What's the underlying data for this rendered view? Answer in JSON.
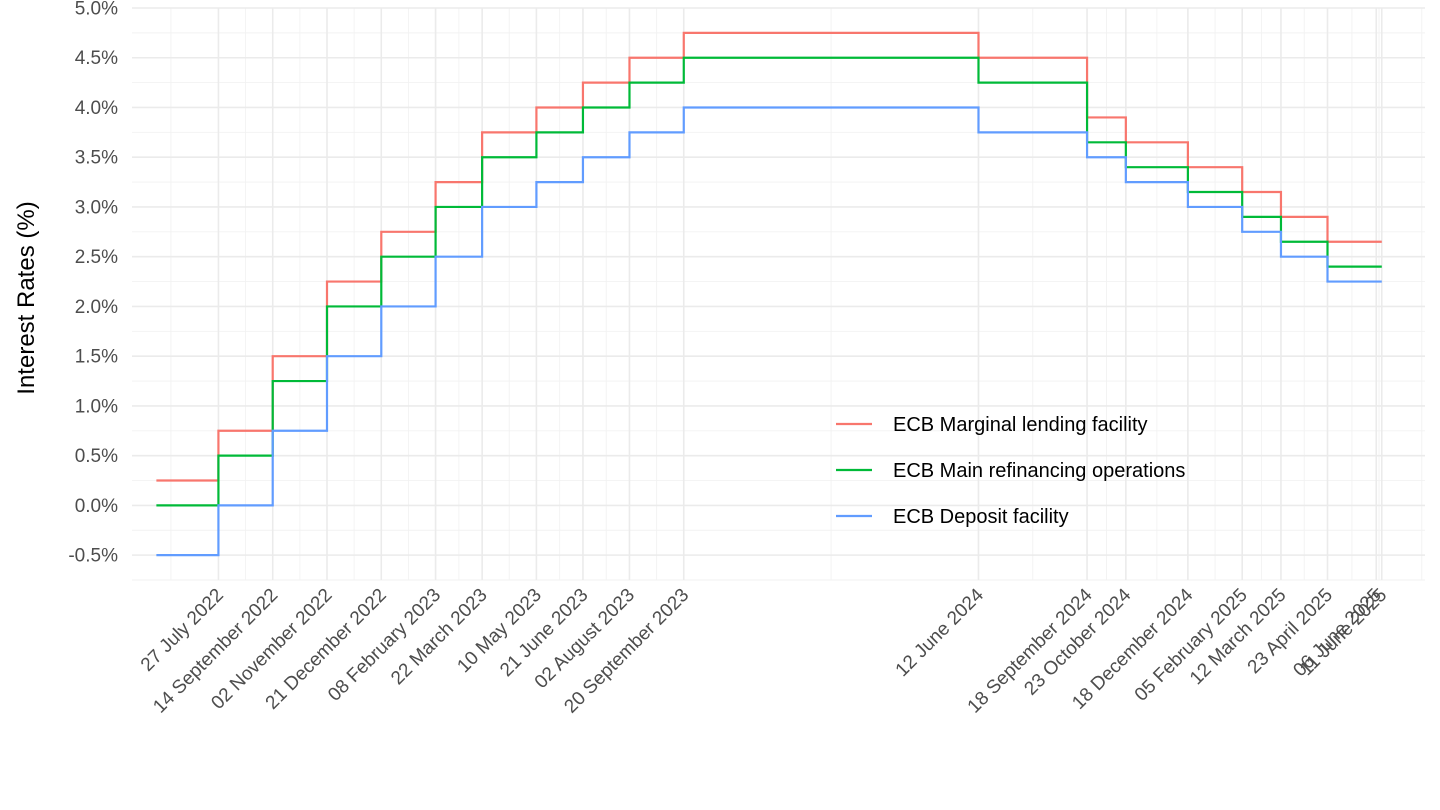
{
  "chart_data": {
    "type": "line",
    "step": true,
    "title": "",
    "xlabel": "",
    "ylabel": "Interest Rates (%)",
    "ylim": [
      -0.75,
      5.0
    ],
    "y_ticks": [
      -0.5,
      0.0,
      0.5,
      1.0,
      1.5,
      2.0,
      2.5,
      3.0,
      3.5,
      4.0,
      4.5,
      5.0
    ],
    "y_tick_labels": [
      "-0.5%",
      "0.0%",
      "0.5%",
      "1.0%",
      "1.5%",
      "2.0%",
      "2.5%",
      "3.0%",
      "3.5%",
      "4.0%",
      "4.5%",
      "5.0%"
    ],
    "x_start": "2022-06-01",
    "x_end": "2025-06-11",
    "xlim": [
      "2022-05-10",
      "2025-07-20"
    ],
    "x_breaks": [
      {
        "date": "2022-07-27",
        "label": "27 July 2022"
      },
      {
        "date": "2022-09-14",
        "label": "14 September 2022"
      },
      {
        "date": "2022-11-02",
        "label": "02 November 2022"
      },
      {
        "date": "2022-12-21",
        "label": "21 December 2022"
      },
      {
        "date": "2023-02-08",
        "label": "08 February 2023"
      },
      {
        "date": "2023-03-22",
        "label": "22 March 2023"
      },
      {
        "date": "2023-05-10",
        "label": "10 May 2023"
      },
      {
        "date": "2023-06-21",
        "label": "21 June 2023"
      },
      {
        "date": "2023-08-02",
        "label": "02 August 2023"
      },
      {
        "date": "2023-09-20",
        "label": "20 September 2023"
      },
      {
        "date": "2024-06-12",
        "label": "12 June 2024"
      },
      {
        "date": "2024-09-18",
        "label": "18 September 2024"
      },
      {
        "date": "2024-10-23",
        "label": "23 October 2024"
      },
      {
        "date": "2024-12-18",
        "label": "18 December 2024"
      },
      {
        "date": "2025-02-05",
        "label": "05 February 2025"
      },
      {
        "date": "2025-03-12",
        "label": "12 March 2025"
      },
      {
        "date": "2025-04-23",
        "label": "23 April 2025"
      },
      {
        "date": "2025-06-06",
        "label": "06 June 2025"
      },
      {
        "date": "2025-06-11",
        "label": "11 June 2025"
      }
    ],
    "series": [
      {
        "name": "ECB Marginal lending facility",
        "color": "#F8766D",
        "values": [
          0.25,
          0.75,
          1.5,
          2.25,
          2.75,
          3.25,
          3.75,
          4.0,
          4.25,
          4.5,
          4.75,
          4.5,
          3.9,
          3.65,
          3.4,
          3.15,
          2.9,
          2.65,
          2.65,
          2.65
        ]
      },
      {
        "name": "ECB Main refinancing operations",
        "color": "#00BA38",
        "values": [
          0.0,
          0.5,
          1.25,
          2.0,
          2.5,
          3.0,
          3.5,
          3.75,
          4.0,
          4.25,
          4.5,
          4.25,
          3.65,
          3.4,
          3.15,
          2.9,
          2.65,
          2.4,
          2.4,
          2.4
        ]
      },
      {
        "name": "ECB Deposit facility",
        "color": "#619CFF",
        "values": [
          -0.5,
          0.0,
          0.75,
          1.5,
          2.0,
          2.5,
          3.0,
          3.25,
          3.5,
          3.75,
          4.0,
          3.75,
          3.5,
          3.25,
          3.0,
          2.75,
          2.5,
          2.25,
          2.25,
          2.25
        ]
      }
    ],
    "grid": true,
    "legend_position": "inside-bottom-right"
  }
}
